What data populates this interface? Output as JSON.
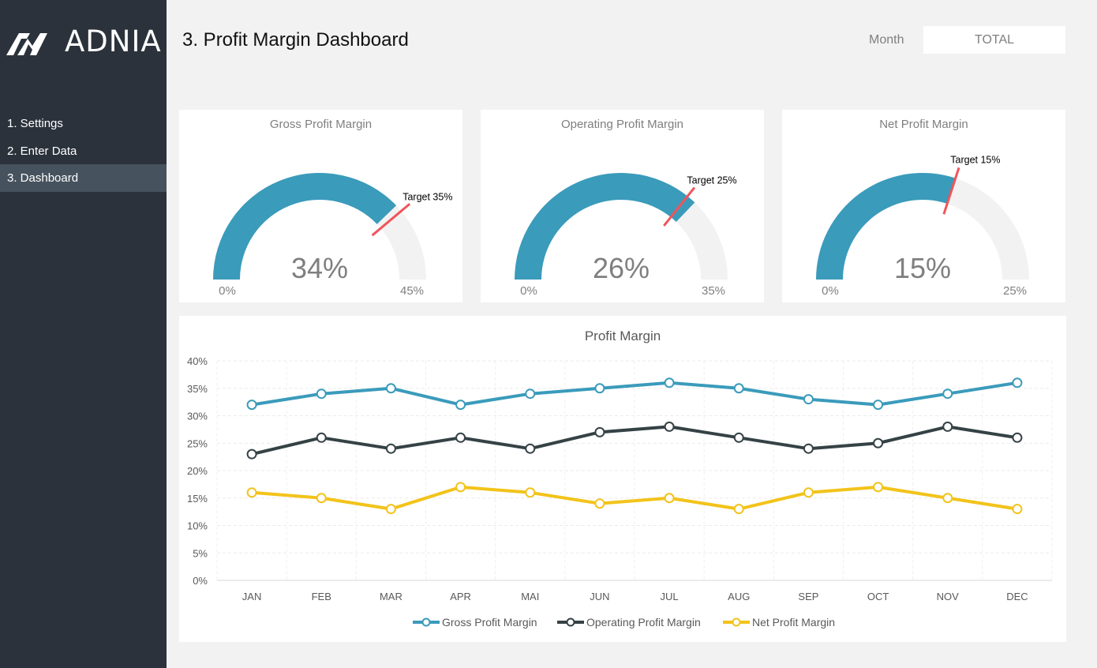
{
  "brand": {
    "name": "ADNIA"
  },
  "sidebar": {
    "items": [
      {
        "label": "1. Settings",
        "active": false
      },
      {
        "label": "2. Enter Data",
        "active": false
      },
      {
        "label": "3. Dashboard",
        "active": true
      }
    ]
  },
  "header": {
    "title": "3. Profit Margin Dashboard",
    "month_label": "Month",
    "month_value": "TOTAL"
  },
  "colors": {
    "sidebar_bg": "#2b323b",
    "sidebar_active": "#46525e",
    "gross": "#3a9bbb",
    "operating": "#354245",
    "net": "#f2c31a",
    "target_marker": "#f0555a",
    "gauge_track": "#f2f2f2"
  },
  "gauges": [
    {
      "title": "Gross Profit Margin",
      "value": 34,
      "value_label": "34%",
      "min_label": "0%",
      "max": 45,
      "max_label": "45%",
      "target": 35,
      "target_label": "Target 35%"
    },
    {
      "title": "Operating Profit Margin",
      "value": 26,
      "value_label": "26%",
      "min_label": "0%",
      "max": 35,
      "max_label": "35%",
      "target": 25,
      "target_label": "Target 25%"
    },
    {
      "title": "Net Profit Margin",
      "value": 15,
      "value_label": "15%",
      "min_label": "0%",
      "max": 25,
      "max_label": "25%",
      "target": 15,
      "target_label": "Target 15%"
    }
  ],
  "chart_data": {
    "type": "line",
    "title": "Profit Margin",
    "categories": [
      "JAN",
      "FEB",
      "MAR",
      "APR",
      "MAI",
      "JUN",
      "JUL",
      "AUG",
      "SEP",
      "OCT",
      "NOV",
      "DEC"
    ],
    "ylim": [
      0,
      40
    ],
    "ytick_labels": [
      "0%",
      "5%",
      "10%",
      "15%",
      "20%",
      "25%",
      "30%",
      "35%",
      "40%"
    ],
    "grid": true,
    "legend_position": "bottom",
    "series": [
      {
        "name": "Gross Profit Margin",
        "color": "#3a9bbb",
        "values": [
          32,
          34,
          35,
          32,
          34,
          35,
          36,
          35,
          33,
          32,
          34,
          36
        ]
      },
      {
        "name": "Operating Profit Margin",
        "color": "#354245",
        "values": [
          23,
          26,
          24,
          26,
          24,
          27,
          28,
          26,
          24,
          25,
          28,
          26
        ]
      },
      {
        "name": "Net Profit Margin",
        "color": "#f2c31a",
        "values": [
          16,
          15,
          13,
          17,
          16,
          14,
          15,
          13,
          16,
          17,
          15,
          13
        ]
      }
    ]
  }
}
